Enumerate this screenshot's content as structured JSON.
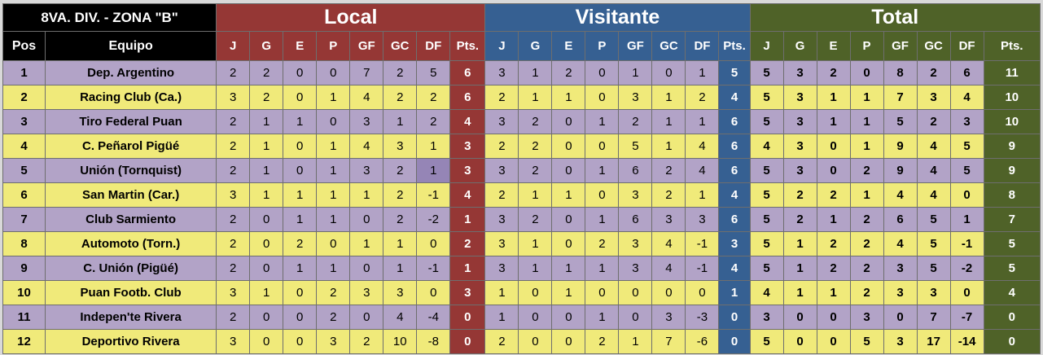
{
  "title": "8VA. DIV. - ZONA \"B\"",
  "headers": {
    "pos": "Pos",
    "team": "Equipo"
  },
  "groups": {
    "local": "Local",
    "visitante": "Visitante",
    "total": "Total"
  },
  "stat_cols": [
    "J",
    "G",
    "E",
    "P",
    "GF",
    "GC",
    "DF",
    "Pts."
  ],
  "colors": {
    "local": "#953735",
    "visitante": "#366092",
    "total": "#4f6228",
    "row_odd": "#b2a3c7",
    "row_even": "#f0ea7a"
  },
  "rows": [
    {
      "pos": "1",
      "team": "Dep. Argentino",
      "local": [
        "2",
        "2",
        "0",
        "0",
        "7",
        "2",
        "5",
        "6"
      ],
      "visitante": [
        "3",
        "1",
        "2",
        "0",
        "1",
        "0",
        "1",
        "5"
      ],
      "total": [
        "5",
        "3",
        "2",
        "0",
        "8",
        "2",
        "6",
        "11"
      ]
    },
    {
      "pos": "2",
      "team": "Racing Club (Ca.)",
      "local": [
        "3",
        "2",
        "0",
        "1",
        "4",
        "2",
        "2",
        "6"
      ],
      "visitante": [
        "2",
        "1",
        "1",
        "0",
        "3",
        "1",
        "2",
        "4"
      ],
      "total": [
        "5",
        "3",
        "1",
        "1",
        "7",
        "3",
        "4",
        "10"
      ]
    },
    {
      "pos": "3",
      "team": "Tiro Federal Puan",
      "local": [
        "2",
        "1",
        "1",
        "0",
        "3",
        "1",
        "2",
        "4"
      ],
      "visitante": [
        "3",
        "2",
        "0",
        "1",
        "2",
        "1",
        "1",
        "6"
      ],
      "total": [
        "5",
        "3",
        "1",
        "1",
        "5",
        "2",
        "3",
        "10"
      ]
    },
    {
      "pos": "4",
      "team": "C. Peñarol Pigüé",
      "local": [
        "2",
        "1",
        "0",
        "1",
        "4",
        "3",
        "1",
        "3"
      ],
      "visitante": [
        "2",
        "2",
        "0",
        "0",
        "5",
        "1",
        "4",
        "6"
      ],
      "total": [
        "4",
        "3",
        "0",
        "1",
        "9",
        "4",
        "5",
        "9"
      ]
    },
    {
      "pos": "5",
      "team": "Unión (Tornquist)",
      "local": [
        "2",
        "1",
        "0",
        "1",
        "3",
        "2",
        "1",
        "3"
      ],
      "visitante": [
        "3",
        "2",
        "0",
        "1",
        "6",
        "2",
        "4",
        "6"
      ],
      "total": [
        "5",
        "3",
        "0",
        "2",
        "9",
        "4",
        "5",
        "9"
      ]
    },
    {
      "pos": "6",
      "team": "San Martin (Car.)",
      "local": [
        "3",
        "1",
        "1",
        "1",
        "1",
        "2",
        "-1",
        "4"
      ],
      "visitante": [
        "2",
        "1",
        "1",
        "0",
        "3",
        "2",
        "1",
        "4"
      ],
      "total": [
        "5",
        "2",
        "2",
        "1",
        "4",
        "4",
        "0",
        "8"
      ]
    },
    {
      "pos": "7",
      "team": "Club Sarmiento",
      "local": [
        "2",
        "0",
        "1",
        "1",
        "0",
        "2",
        "-2",
        "1"
      ],
      "visitante": [
        "3",
        "2",
        "0",
        "1",
        "6",
        "3",
        "3",
        "6"
      ],
      "total": [
        "5",
        "2",
        "1",
        "2",
        "6",
        "5",
        "1",
        "7"
      ]
    },
    {
      "pos": "8",
      "team": "Automoto (Torn.)",
      "local": [
        "2",
        "0",
        "2",
        "0",
        "1",
        "1",
        "0",
        "2"
      ],
      "visitante": [
        "3",
        "1",
        "0",
        "2",
        "3",
        "4",
        "-1",
        "3"
      ],
      "total": [
        "5",
        "1",
        "2",
        "2",
        "4",
        "5",
        "-1",
        "5"
      ]
    },
    {
      "pos": "9",
      "team": "C. Unión (Pigüé)",
      "local": [
        "2",
        "0",
        "1",
        "1",
        "0",
        "1",
        "-1",
        "1"
      ],
      "visitante": [
        "3",
        "1",
        "1",
        "1",
        "3",
        "4",
        "-1",
        "4"
      ],
      "total": [
        "5",
        "1",
        "2",
        "2",
        "3",
        "5",
        "-2",
        "5"
      ]
    },
    {
      "pos": "10",
      "team": "Puan Footb. Club",
      "local": [
        "3",
        "1",
        "0",
        "2",
        "3",
        "3",
        "0",
        "3"
      ],
      "visitante": [
        "1",
        "0",
        "1",
        "0",
        "0",
        "0",
        "0",
        "1"
      ],
      "total": [
        "4",
        "1",
        "1",
        "2",
        "3",
        "3",
        "0",
        "4"
      ]
    },
    {
      "pos": "11",
      "team": "Indepen'te Rivera",
      "local": [
        "2",
        "0",
        "0",
        "2",
        "0",
        "4",
        "-4",
        "0"
      ],
      "visitante": [
        "1",
        "0",
        "0",
        "1",
        "0",
        "3",
        "-3",
        "0"
      ],
      "total": [
        "3",
        "0",
        "0",
        "3",
        "0",
        "7",
        "-7",
        "0"
      ]
    },
    {
      "pos": "12",
      "team": "Deportivo Rivera",
      "local": [
        "3",
        "0",
        "0",
        "3",
        "2",
        "10",
        "-8",
        "0"
      ],
      "visitante": [
        "2",
        "0",
        "0",
        "2",
        "1",
        "7",
        "-6",
        "0"
      ],
      "total": [
        "5",
        "0",
        "0",
        "5",
        "3",
        "17",
        "-14",
        "0"
      ]
    }
  ]
}
